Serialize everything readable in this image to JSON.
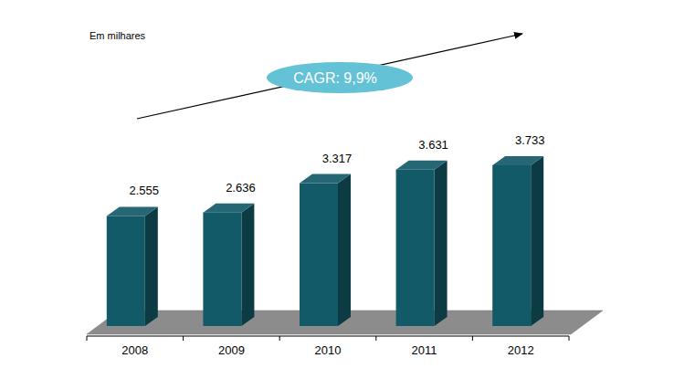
{
  "chart_data": {
    "type": "bar",
    "annotations": [
      "Em milhares",
      "CAGR: 9,9%"
    ],
    "categories": [
      "2008",
      "2009",
      "2010",
      "2011",
      "2012"
    ],
    "values": [
      2555,
      2636,
      3317,
      3631,
      3733
    ],
    "value_labels": [
      "2.555",
      "2.636",
      "3.317",
      "3.631",
      "3.733"
    ],
    "color": "#135a69",
    "ylim": [
      0,
      6000
    ],
    "data_labels": true,
    "tick_labels": "x",
    "grid": false
  }
}
